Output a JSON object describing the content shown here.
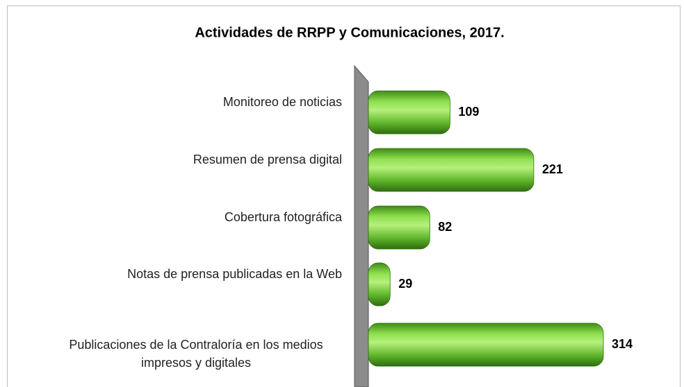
{
  "chart_data": {
    "type": "bar",
    "orientation": "horizontal",
    "title": "Actividades de RRPP y Comunicaciones, 2017.",
    "categories": [
      "Monitoreo de noticias",
      "Resumen de prensa digital",
      "Cobertura fotográfica",
      "Notas de prensa publicadas en la Web",
      "Publicaciones de la Contraloría en los medios impresos y digitales"
    ],
    "values": [
      109,
      221,
      82,
      29,
      314
    ],
    "color": "#6cc531"
  }
}
